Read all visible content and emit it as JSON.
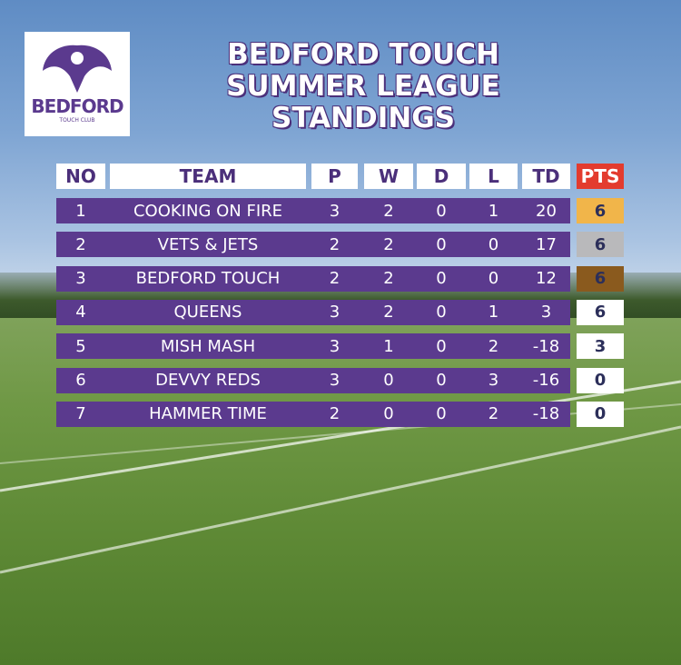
{
  "logo": {
    "name": "BEDFORD",
    "subtitle": "TOUCH CLUB"
  },
  "title": [
    "BEDFORD TOUCH",
    "SUMMER LEAGUE",
    "STANDINGS"
  ],
  "table": {
    "header": [
      "NO",
      "TEAM",
      "P",
      "W",
      "D",
      "L",
      "TD",
      "PTS"
    ],
    "rows": [
      [
        1,
        "COOKING ON FIRE",
        3,
        2,
        0,
        1,
        20,
        6
      ],
      [
        2,
        "VETS & JETS",
        2,
        2,
        0,
        0,
        17,
        6
      ],
      [
        3,
        "BEDFORD TOUCH",
        2,
        2,
        0,
        0,
        12,
        6
      ],
      [
        4,
        "QUEENS",
        3,
        2,
        0,
        1,
        3,
        6
      ],
      [
        5,
        "MISH MASH",
        3,
        1,
        0,
        2,
        -18,
        3
      ],
      [
        6,
        "DEVVY REDS",
        3,
        0,
        0,
        3,
        -16,
        0
      ],
      [
        7,
        "HAMMER TIME",
        2,
        0,
        0,
        2,
        -18,
        0
      ]
    ]
  }
}
